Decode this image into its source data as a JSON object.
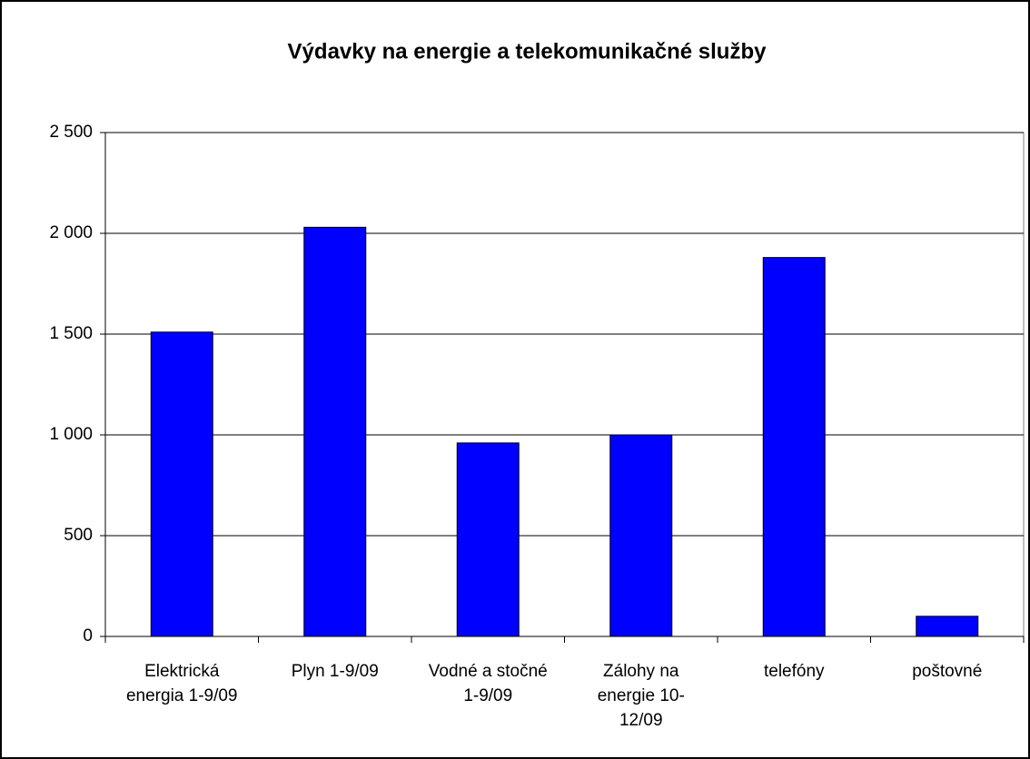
{
  "chart_data": {
    "type": "bar",
    "title": "Výdavky na energie a telekomunikačné služby",
    "categories": [
      "Elektrická energia 1-9/09",
      "Plyn 1-9/09",
      "Vodné a stočné 1-9/09",
      "Zálohy na energie 10-12/09",
      "telefóny",
      "poštovné"
    ],
    "values": [
      1510,
      2030,
      960,
      1000,
      1880,
      100
    ],
    "color": "#0000ff",
    "ylim": [
      0,
      2500
    ],
    "yticks": [
      0,
      500,
      {
        "value": 1000,
        "label": "1 000"
      },
      {
        "value": 1500,
        "label": "1 500"
      },
      {
        "value": 2000,
        "label": "2 000"
      },
      {
        "value": 2500,
        "label": "2 500"
      }
    ],
    "grid": true
  }
}
